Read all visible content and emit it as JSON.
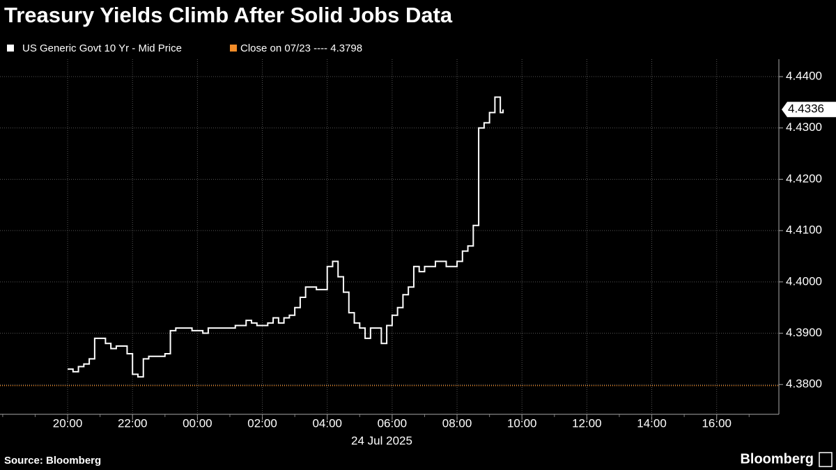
{
  "chart_data": {
    "type": "line",
    "title": "Treasury Yields Climb After Solid Jobs Data",
    "series": [
      {
        "name": "US Generic Govt 10 Yr - Mid Price",
        "color": "#ffffff",
        "step": true,
        "values": [
          4.383,
          4.3825,
          4.3835,
          4.384,
          4.385,
          4.389,
          4.389,
          4.388,
          4.387,
          4.3875,
          4.3875,
          4.386,
          4.382,
          4.3815,
          4.385,
          4.3855,
          4.3855,
          4.3855,
          4.386,
          4.3905,
          4.391,
          4.391,
          4.391,
          4.3905,
          4.3905,
          4.39,
          4.391,
          4.391,
          4.391,
          4.391,
          4.391,
          4.3915,
          4.3915,
          4.3925,
          4.392,
          4.3915,
          4.3915,
          4.392,
          4.393,
          4.392,
          4.393,
          4.3935,
          4.395,
          4.397,
          4.399,
          4.399,
          4.3985,
          4.3985,
          4.403,
          4.404,
          4.401,
          4.398,
          4.394,
          4.392,
          4.391,
          4.389,
          4.391,
          4.391,
          4.388,
          4.3915,
          4.3935,
          4.395,
          4.3975,
          4.399,
          4.403,
          4.402,
          4.403,
          4.403,
          4.404,
          4.404,
          4.403,
          4.403,
          4.404,
          4.406,
          4.407,
          4.411,
          4.43,
          4.431,
          4.433,
          4.436,
          4.433,
          4.4336
        ]
      }
    ],
    "x": [
      "20:00",
      "20:10",
      "20:20",
      "20:30",
      "20:40",
      "20:50",
      "21:00",
      "21:10",
      "21:20",
      "21:30",
      "21:40",
      "21:50",
      "22:00",
      "22:10",
      "22:20",
      "22:30",
      "22:40",
      "22:50",
      "23:00",
      "23:10",
      "23:20",
      "23:30",
      "23:40",
      "23:50",
      "00:00",
      "00:10",
      "00:20",
      "00:30",
      "00:40",
      "00:50",
      "01:00",
      "01:10",
      "01:20",
      "01:30",
      "01:40",
      "01:50",
      "02:00",
      "02:10",
      "02:20",
      "02:30",
      "02:40",
      "02:50",
      "03:00",
      "03:10",
      "03:20",
      "03:30",
      "03:40",
      "03:50",
      "04:00",
      "04:10",
      "04:20",
      "04:30",
      "04:40",
      "04:50",
      "05:00",
      "05:10",
      "05:20",
      "05:30",
      "05:40",
      "05:50",
      "06:00",
      "06:10",
      "06:20",
      "06:30",
      "06:40",
      "06:50",
      "07:00",
      "07:10",
      "07:20",
      "07:30",
      "07:40",
      "07:50",
      "08:00",
      "08:10",
      "08:20",
      "08:30",
      "08:40",
      "08:50",
      "09:00",
      "09:10",
      "09:20",
      "09:25"
    ],
    "last_value_label": "4.4336",
    "reference_line": {
      "label": "Close on 07/23 ----",
      "value": 4.3798,
      "color": "#f28c28"
    },
    "xlim": [
      "17:55",
      "17:55"
    ],
    "xticks": [
      "20:00",
      "22:00",
      "00:00",
      "02:00",
      "04:00",
      "06:00",
      "08:00",
      "10:00",
      "12:00",
      "14:00",
      "16:00"
    ],
    "date_label": "24 Jul 2025",
    "ylim": [
      4.3742,
      4.4434
    ],
    "yticks": [
      {
        "value": 4.38,
        "label": "4.3800"
      },
      {
        "value": 4.39,
        "label": "4.3900"
      },
      {
        "value": 4.4,
        "label": "4.4000"
      },
      {
        "value": 4.41,
        "label": "4.4100"
      },
      {
        "value": 4.42,
        "label": "4.4200"
      },
      {
        "value": 4.43,
        "label": "4.4300"
      },
      {
        "value": 4.44,
        "label": "4.4400"
      }
    ],
    "grid": true,
    "source": "Source: Bloomberg",
    "logo": "Bloomberg"
  }
}
